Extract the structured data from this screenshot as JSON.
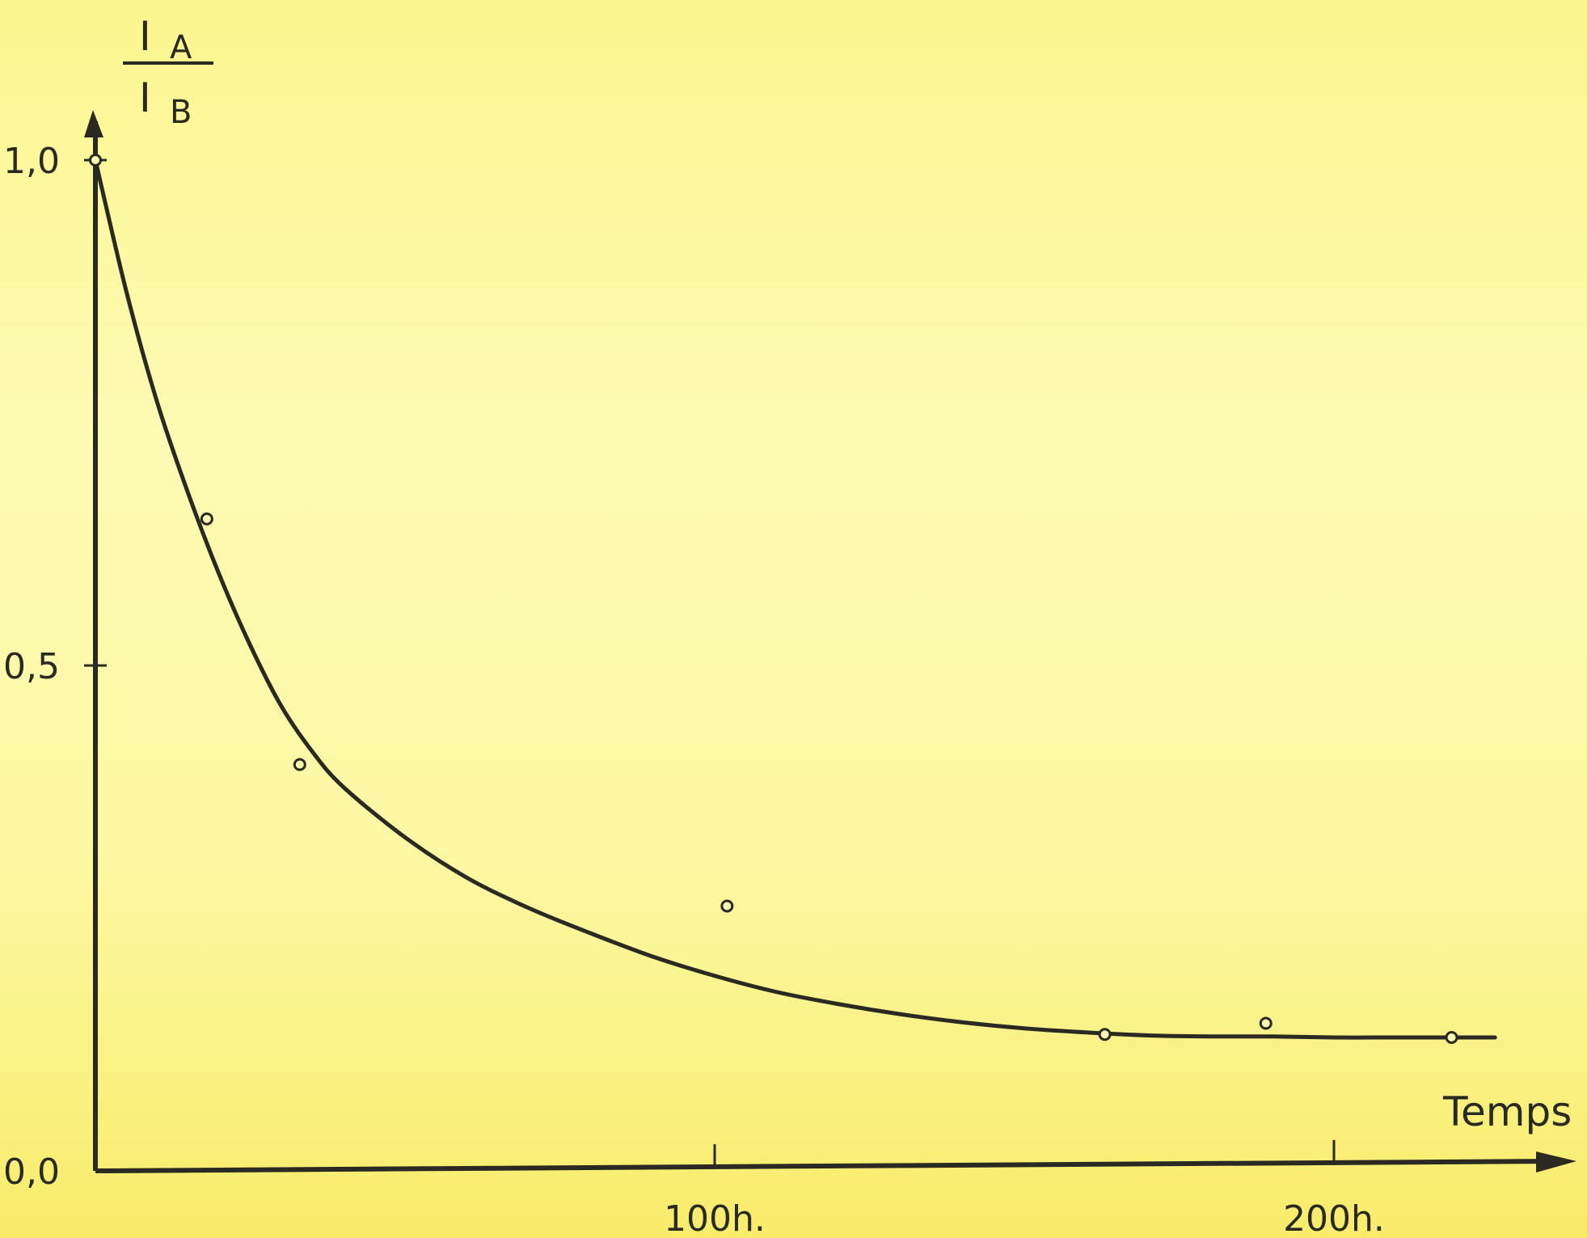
{
  "chart_data": {
    "type": "scatter",
    "title": "",
    "ylabel": {
      "numerator": "I",
      "numerator_sub": "A",
      "denominator": "I",
      "denominator_sub": "B"
    },
    "xlabel": "Temps",
    "xlim": [
      0,
      230
    ],
    "ylim": [
      0,
      1.0
    ],
    "x_ticks": [
      {
        "value": 100,
        "label": "100h."
      },
      {
        "value": 200,
        "label": "200h."
      }
    ],
    "y_ticks": [
      {
        "value": 0.0,
        "label": "0,0"
      },
      {
        "value": 0.5,
        "label": "0,5"
      },
      {
        "value": 1.0,
        "label": "1,0"
      }
    ],
    "grid": false,
    "points": [
      {
        "x": 0,
        "y": 1.0
      },
      {
        "x": 18,
        "y": 0.645
      },
      {
        "x": 33,
        "y": 0.402
      },
      {
        "x": 102,
        "y": 0.262
      },
      {
        "x": 163,
        "y": 0.135
      },
      {
        "x": 189,
        "y": 0.146
      },
      {
        "x": 219,
        "y": 0.132
      }
    ],
    "fit_curve": {
      "x": [
        0,
        5,
        10,
        15,
        20,
        25,
        30,
        35,
        40,
        50,
        60,
        70,
        80,
        90,
        100,
        110,
        120,
        130,
        140,
        150,
        160,
        170,
        180,
        190,
        200,
        210,
        220,
        226
      ],
      "y": [
        1.0,
        0.87,
        0.76,
        0.67,
        0.59,
        0.52,
        0.46,
        0.415,
        0.38,
        0.33,
        0.29,
        0.26,
        0.235,
        0.212,
        0.193,
        0.177,
        0.165,
        0.155,
        0.147,
        0.141,
        0.137,
        0.134,
        0.133,
        0.133,
        0.132,
        0.132,
        0.132,
        0.132
      ]
    }
  }
}
